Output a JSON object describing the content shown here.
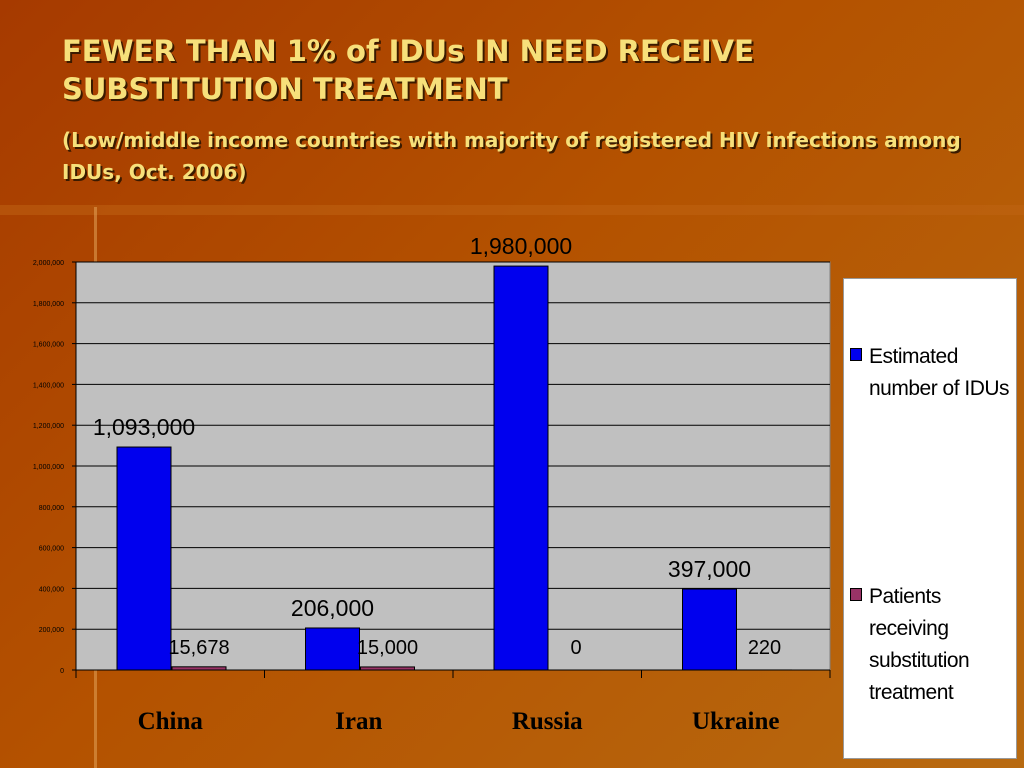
{
  "slide": {
    "title": "FEWER THAN 1% of IDUs IN NEED RECEIVE SUBSTITUTION TREATMENT",
    "subtitle": "(Low/middle income countries with majority of registered HIV infections among IDUs, Oct. 2006)"
  },
  "colors": {
    "series_1": "#0000ee",
    "series_2": "#993366",
    "plot_bg": "#c0c0c0",
    "title_text": "#f7e07a"
  },
  "chart_data": {
    "type": "bar",
    "categories": [
      "China",
      "Iran",
      "Russia",
      "Ukraine"
    ],
    "series": [
      {
        "name": "Estimated number of IDUs",
        "values": [
          1093000,
          206000,
          1980000,
          397000
        ],
        "labels": [
          "1,093,000",
          "206,000",
          "1,980,000",
          "397,000"
        ]
      },
      {
        "name": "Patients receiving substitution treatment",
        "values": [
          15678,
          15000,
          0,
          220
        ],
        "labels": [
          "15,678",
          "15,000",
          "0",
          "220"
        ]
      }
    ],
    "ylim": [
      0,
      2000000
    ],
    "yticks": [
      "0",
      "200,000",
      "400,000",
      "600,000",
      "800,000",
      "1,000,000",
      "1,200,000",
      "1,400,000",
      "1,600,000",
      "1,800,000",
      "2,000,000"
    ],
    "grid": true,
    "legend": "right"
  }
}
